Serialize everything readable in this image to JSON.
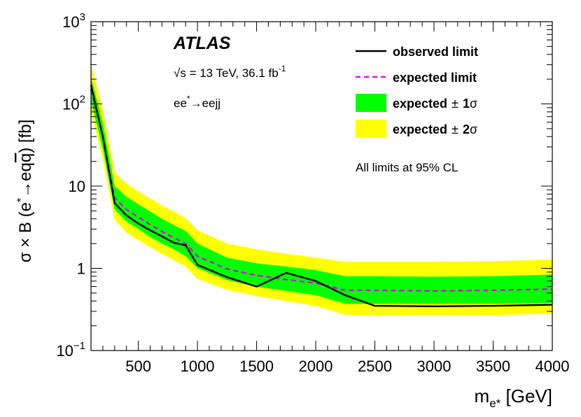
{
  "chart_data": {
    "type": "line",
    "scale": {
      "x": "linear",
      "y": "log"
    },
    "xlim": [
      100,
      4000
    ],
    "ylim": [
      0.1,
      1000
    ],
    "xlabel": {
      "main": "m",
      "sub": "e*",
      "unit": " [GeV]"
    },
    "ylabel": {
      "prefix": "σ × B (e",
      "sup": "*",
      "arrow": "→",
      "process": "eq",
      "qbar": "q",
      "close": ") [fb]"
    },
    "x_ticks": [
      500,
      1000,
      1500,
      2000,
      2500,
      3000,
      3500,
      4000
    ],
    "x_tick_labels": [
      "500",
      "1000",
      "1500",
      "2000",
      "2500",
      "3000",
      "3500",
      "4000"
    ],
    "y_ticks": [
      {
        "value": 0.1,
        "base": "10",
        "exp": "−1"
      },
      {
        "value": 1,
        "label": "1"
      },
      {
        "value": 10,
        "label": "10"
      },
      {
        "value": 100,
        "base": "10",
        "exp": "2"
      },
      {
        "value": 1000,
        "base": "10",
        "exp": "3"
      }
    ],
    "x": [
      100,
      200,
      300,
      400,
      500,
      600,
      700,
      800,
      900,
      1000,
      1250,
      1500,
      1750,
      2000,
      2250,
      2500,
      3000,
      3500,
      4000
    ],
    "series": [
      {
        "name": "observed limit",
        "key": "observed",
        "values": [
          170,
          40,
          6.2,
          4.4,
          3.5,
          2.9,
          2.45,
          2.05,
          1.9,
          1.1,
          0.78,
          0.6,
          0.88,
          0.7,
          0.47,
          0.35,
          0.345,
          0.35,
          0.36
        ]
      },
      {
        "name": "expected limit",
        "key": "expected",
        "values": [
          150,
          40,
          7.2,
          5.2,
          4.2,
          3.4,
          2.8,
          2.35,
          2.0,
          1.4,
          0.98,
          0.82,
          0.73,
          0.66,
          0.54,
          0.54,
          0.53,
          0.54,
          0.56
        ]
      },
      {
        "name": "expected ± 1σ",
        "key": "band1",
        "lower": [
          110,
          28,
          5.2,
          3.7,
          3.0,
          2.4,
          2.0,
          1.7,
          1.4,
          1.0,
          0.72,
          0.6,
          0.53,
          0.47,
          0.37,
          0.37,
          0.37,
          0.37,
          0.38
        ],
        "upper": [
          210,
          58,
          10.0,
          7.4,
          6.0,
          4.9,
          4.0,
          3.35,
          2.85,
          2.0,
          1.35,
          1.15,
          1.05,
          0.95,
          0.8,
          0.8,
          0.79,
          0.8,
          0.84
        ]
      },
      {
        "name": "expected ± 2σ",
        "key": "band2",
        "lower": [
          80,
          21,
          3.9,
          2.7,
          2.2,
          1.8,
          1.5,
          1.25,
          1.05,
          0.74,
          0.55,
          0.46,
          0.4,
          0.35,
          0.27,
          0.27,
          0.27,
          0.27,
          0.28
        ],
        "upper": [
          300,
          85,
          14.5,
          10.8,
          8.6,
          7.1,
          5.8,
          4.9,
          4.1,
          2.9,
          2.0,
          1.7,
          1.5,
          1.35,
          1.2,
          1.2,
          1.2,
          1.22,
          1.28
        ]
      }
    ],
    "legend": {
      "position": "top-right",
      "observed": "observed limit",
      "expected": "expected limit",
      "band1_label": "expected",
      "band1_pm": "±",
      "band1_n": "1",
      "band1_sigma": "σ",
      "band2_label": "expected",
      "band2_pm": "±",
      "band2_n": "2",
      "band2_sigma": "σ"
    },
    "annotations": {
      "experiment": "ATLAS",
      "energy_root": "√",
      "energy_s": "s",
      "energy_rest": " = 13 TeV, 36.1 fb",
      "energy_exp": "-1",
      "channel_a": "ee",
      "channel_sup": "*",
      "channel_b": "→eejj",
      "cl_note": "All limits at 95% CL"
    },
    "colors": {
      "observed": "#000000",
      "expected": "#e000e0",
      "band1": "#00ff00",
      "band2": "#ffff00",
      "frame": "#000000"
    }
  }
}
